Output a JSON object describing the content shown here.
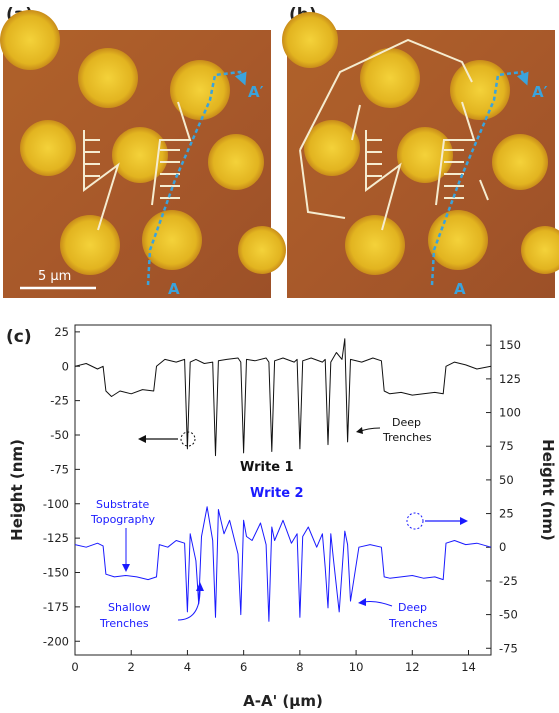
{
  "panels": {
    "a": {
      "label": "(a)",
      "scale_bar": "5 μm",
      "marker_start": "A",
      "marker_end": "A′"
    },
    "b": {
      "label": "(b)",
      "marker_start": "A",
      "marker_end": "A′"
    },
    "c": {
      "label": "(c)"
    }
  },
  "colors": {
    "background_afm": "#a85a24",
    "dots": "#e6bc24",
    "line_cyan": "#3aa3dc",
    "write1": "#111111",
    "write2": "#1a1aff"
  },
  "annotations": {
    "write1": "Write 1",
    "write2": "Write 2",
    "deep_trenches_1": [
      "Deep",
      "Trenches"
    ],
    "deep_trenches_2": [
      "Deep",
      "Trenches"
    ],
    "substrate": [
      "Substrate",
      "Topography"
    ],
    "shallow": [
      "Shallow",
      "Trenches"
    ]
  },
  "chart_data": {
    "type": "line",
    "xlabel": "A-A' (μm)",
    "ylabel_left": "Height (nm)",
    "ylabel_right": "Height (nm)",
    "xlim": [
      0,
      14.8
    ],
    "ylim_left": [
      -210,
      30
    ],
    "ylim_right": [
      -80,
      165
    ],
    "x_ticks": [
      0,
      2,
      4,
      6,
      8,
      10,
      12,
      14
    ],
    "y_ticks_left": [
      25,
      0,
      -25,
      -50,
      -75,
      -100,
      -125,
      -150,
      -175,
      -200
    ],
    "y_ticks_right": [
      150,
      125,
      100,
      75,
      50,
      25,
      0,
      -25,
      -50,
      -75
    ],
    "series": [
      {
        "name": "Write 1",
        "axis": "left",
        "x": [
          0,
          0.4,
          0.8,
          1.0,
          1.1,
          1.3,
          1.6,
          2.0,
          2.4,
          2.8,
          2.9,
          3.2,
          3.6,
          3.9,
          4.0,
          4.1,
          4.3,
          4.6,
          4.9,
          5.0,
          5.1,
          5.4,
          5.8,
          5.9,
          6.0,
          6.1,
          6.4,
          6.8,
          6.9,
          7.0,
          7.1,
          7.4,
          7.8,
          7.9,
          8.0,
          8.1,
          8.4,
          8.8,
          8.9,
          9.0,
          9.1,
          9.3,
          9.5,
          9.6,
          9.7,
          9.8,
          10.2,
          10.6,
          10.9,
          11.0,
          11.2,
          11.6,
          12.0,
          12.4,
          12.8,
          13.1,
          13.2,
          13.5,
          13.9,
          14.3,
          14.8
        ],
        "y": [
          0,
          2,
          -2,
          0,
          -18,
          -22,
          -18,
          -20,
          -17,
          -18,
          0,
          5,
          3,
          5,
          -60,
          3,
          5,
          2,
          3,
          -65,
          4,
          5,
          6,
          3,
          -63,
          5,
          4,
          6,
          3,
          -62,
          4,
          6,
          3,
          5,
          -60,
          4,
          6,
          3,
          5,
          -57,
          3,
          10,
          5,
          20,
          -55,
          5,
          3,
          6,
          4,
          -18,
          -20,
          -19,
          -21,
          -20,
          -19,
          -20,
          0,
          3,
          1,
          -2,
          0
        ]
      },
      {
        "name": "Write 2",
        "axis": "right",
        "x": [
          0,
          0.4,
          0.8,
          1.0,
          1.1,
          1.4,
          1.8,
          2.2,
          2.6,
          2.9,
          3.0,
          3.3,
          3.6,
          3.9,
          4.0,
          4.1,
          4.3,
          4.4,
          4.5,
          4.7,
          4.9,
          5.0,
          5.1,
          5.3,
          5.5,
          5.8,
          5.9,
          6.0,
          6.1,
          6.3,
          6.6,
          6.8,
          6.9,
          7.0,
          7.1,
          7.4,
          7.7,
          7.9,
          8.0,
          8.1,
          8.3,
          8.6,
          8.8,
          8.9,
          9.0,
          9.1,
          9.2,
          9.4,
          9.6,
          9.7,
          9.8,
          10.1,
          10.5,
          10.9,
          11.0,
          11.2,
          11.6,
          12.0,
          12.4,
          12.8,
          13.1,
          13.2,
          13.5,
          13.9,
          14.3,
          14.8
        ],
        "y": [
          2,
          0,
          3,
          1,
          -20,
          -22,
          -21,
          -22,
          -24,
          -22,
          2,
          0,
          5,
          3,
          -48,
          10,
          -10,
          -42,
          8,
          30,
          5,
          -52,
          28,
          10,
          20,
          -5,
          -50,
          20,
          8,
          5,
          18,
          2,
          -55,
          15,
          5,
          20,
          3,
          10,
          -52,
          8,
          15,
          0,
          10,
          -15,
          -45,
          10,
          -10,
          -48,
          12,
          2,
          -40,
          0,
          2,
          0,
          -22,
          -23,
          -22,
          -21,
          -23,
          -22,
          -24,
          3,
          5,
          2,
          3,
          0
        ]
      }
    ]
  }
}
